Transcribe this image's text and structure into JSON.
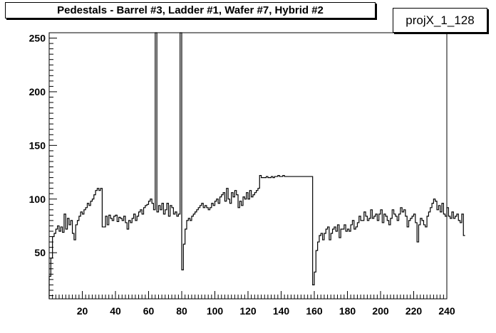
{
  "title": "Pedestals - Barrel #3, Ladder #1, Wafer #7, Hybrid #2",
  "stats_name": "projX_1_128",
  "chart_data": {
    "type": "histogram",
    "title": "Pedestals - Barrel #3, Ladder #1, Wafer #7, Hybrid #2",
    "xlabel": "",
    "ylabel": "",
    "xlim": [
      0,
      240
    ],
    "ylim": [
      7,
      255
    ],
    "grid": false,
    "legend": "none",
    "line_color": "#000000",
    "xticks": [
      20,
      40,
      60,
      80,
      100,
      120,
      140,
      160,
      180,
      200,
      220,
      240
    ],
    "yticks": [
      50,
      100,
      150,
      200,
      250
    ],
    "bin_width": 1,
    "values": [
      28,
      45,
      65,
      68,
      72,
      75,
      70,
      74,
      69,
      86,
      72,
      82,
      76,
      80,
      68,
      62,
      76,
      80,
      84,
      88,
      86,
      90,
      92,
      96,
      94,
      98,
      100,
      104,
      108,
      110,
      108,
      110,
      74,
      74,
      84,
      76,
      85,
      82,
      80,
      84,
      85,
      79,
      83,
      82,
      80,
      84,
      78,
      72,
      80,
      78,
      82,
      86,
      80,
      84,
      88,
      90,
      86,
      92,
      94,
      95,
      98,
      100,
      96,
      90,
      255,
      88,
      94,
      90,
      96,
      86,
      90,
      96,
      84,
      94,
      92,
      86,
      88,
      84,
      86,
      255,
      34,
      58,
      72,
      80,
      82,
      80,
      84,
      86,
      88,
      90,
      92,
      94,
      96,
      92,
      94,
      92,
      90,
      92,
      96,
      94,
      98,
      100,
      96,
      102,
      104,
      106,
      98,
      110,
      100,
      96,
      106,
      102,
      108,
      104,
      92,
      98,
      94,
      102,
      100,
      106,
      100,
      108,
      102,
      104,
      106,
      108,
      110,
      122,
      120,
      120,
      120,
      121,
      120,
      120,
      121,
      120,
      121,
      121,
      122,
      121,
      121,
      122,
      121,
      121,
      121,
      121,
      121,
      121,
      121,
      121,
      121,
      121,
      121,
      121,
      121,
      121,
      121,
      121,
      121,
      20,
      32,
      52,
      60,
      66,
      68,
      62,
      68,
      72,
      74,
      62,
      68,
      72,
      74,
      70,
      76,
      64,
      72,
      72,
      76,
      70,
      72,
      70,
      76,
      80,
      72,
      74,
      78,
      84,
      80,
      80,
      88,
      84,
      80,
      82,
      90,
      82,
      84,
      86,
      80,
      86,
      90,
      78,
      86,
      84,
      80,
      76,
      82,
      90,
      86,
      84,
      80,
      86,
      92,
      88,
      90,
      84,
      74,
      80,
      82,
      84,
      86,
      78,
      60,
      76,
      82,
      80,
      76,
      74,
      84,
      88,
      92,
      96,
      100,
      98,
      90,
      94,
      88,
      96,
      86,
      84,
      92,
      84,
      82,
      88,
      82,
      84,
      86,
      80,
      78,
      86,
      66
    ]
  }
}
